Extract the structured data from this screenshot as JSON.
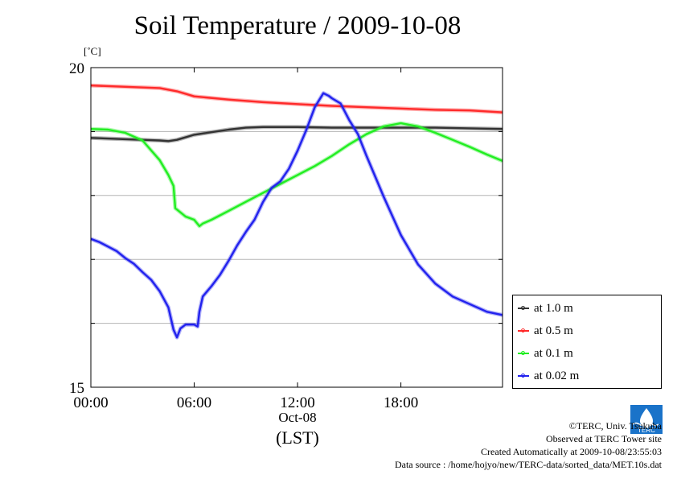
{
  "header": {
    "title": "Soil Temperature / 2009-10-08",
    "unit": "[˚C]"
  },
  "axis": {
    "date_label": "Oct-08",
    "timezone_label": "(LST)"
  },
  "credits": {
    "copyright": "©TERC, Univ. Tsukuba",
    "site": "Observed at TERC Tower site",
    "created": "Created Automatically at 2009-10-08/23:55:03",
    "source": "Data source : /home/hojyo/new/TERC-data/sorted_data/MET.10s.dat"
  },
  "logo": {
    "icon": "terc-logo-icon",
    "text": "TERC"
  },
  "legend": [
    {
      "label": "at 1.0 m",
      "color": "#333333"
    },
    {
      "label": "at 0.5 m",
      "color": "#ff2a2a"
    },
    {
      "label": "at 0.1 m",
      "color": "#22ee22"
    },
    {
      "label": "at 0.02 m",
      "color": "#2222ee"
    }
  ],
  "chart_data": {
    "type": "line",
    "title": "Soil Temperature / 2009-10-08",
    "ylabel": "[˚C]",
    "ylim": [
      15,
      20
    ],
    "xlim": [
      0,
      23.9
    ],
    "ytick_labels": [
      "15",
      "20"
    ],
    "yticks": [
      15,
      16,
      17,
      18,
      19,
      20
    ],
    "xticks": [
      0,
      6,
      12,
      18
    ],
    "xtick_labels": [
      "00:00",
      "06:00",
      "12:00",
      "18:00"
    ],
    "grid": true,
    "legend_position": "bottom-right-outside",
    "series": [
      {
        "name": "at 1.0 m",
        "color": "#333333",
        "x": [
          0,
          2,
          4,
          4.5,
          5,
          6,
          7,
          8,
          9,
          10,
          12,
          14,
          16,
          18,
          20,
          22,
          23.9
        ],
        "y": [
          18.9,
          18.88,
          18.86,
          18.85,
          18.87,
          18.95,
          18.99,
          19.03,
          19.06,
          19.07,
          19.07,
          19.06,
          19.06,
          19.06,
          19.06,
          19.05,
          19.04
        ]
      },
      {
        "name": "at 0.5 m",
        "color": "#ff2a2a",
        "x": [
          0,
          2,
          4,
          5,
          6,
          8,
          10,
          12,
          14,
          16,
          18,
          20,
          22,
          23.9
        ],
        "y": [
          19.72,
          19.7,
          19.68,
          19.63,
          19.55,
          19.5,
          19.46,
          19.43,
          19.4,
          19.38,
          19.36,
          19.34,
          19.33,
          19.3
        ]
      },
      {
        "name": "at 0.1 m",
        "color": "#22ee22",
        "x": [
          0,
          1,
          2,
          3,
          4,
          4.5,
          4.8,
          4.9,
          5,
          5.5,
          6,
          6.3,
          6.5,
          7,
          8,
          9,
          10,
          11,
          12,
          13,
          14,
          15,
          16,
          17,
          18,
          19,
          20,
          21,
          22,
          23,
          23.9
        ],
        "y": [
          19.04,
          19.03,
          18.98,
          18.86,
          18.55,
          18.32,
          18.15,
          17.8,
          17.78,
          17.67,
          17.62,
          17.52,
          17.56,
          17.62,
          17.76,
          17.9,
          18.04,
          18.18,
          18.32,
          18.46,
          18.62,
          18.8,
          18.96,
          19.08,
          19.13,
          19.08,
          18.98,
          18.87,
          18.76,
          18.64,
          18.54
        ]
      },
      {
        "name": "at 0.02 m",
        "color": "#2222ee",
        "x": [
          0,
          0.5,
          1,
          1.5,
          2,
          2.5,
          3,
          3.5,
          4,
          4.5,
          4.8,
          5.0,
          5.2,
          5.5,
          6,
          6.2,
          6.3,
          6.5,
          7,
          7.5,
          8,
          8.5,
          9,
          9.5,
          10,
          10.5,
          11,
          11.5,
          12,
          12.5,
          13,
          13.5,
          13.8,
          14,
          14.5,
          15,
          15.5,
          16,
          17,
          18,
          19,
          20,
          21,
          22,
          23,
          23.9
        ],
        "y": [
          17.32,
          17.27,
          17.2,
          17.13,
          17.02,
          16.93,
          16.8,
          16.68,
          16.5,
          16.25,
          15.9,
          15.78,
          15.92,
          15.98,
          15.98,
          15.95,
          16.18,
          16.42,
          16.58,
          16.76,
          16.98,
          17.22,
          17.43,
          17.62,
          17.9,
          18.12,
          18.22,
          18.42,
          18.7,
          19.02,
          19.38,
          19.6,
          19.56,
          19.52,
          19.44,
          19.18,
          18.96,
          18.62,
          17.98,
          17.38,
          16.92,
          16.62,
          16.42,
          16.3,
          16.18,
          16.13
        ]
      }
    ]
  }
}
